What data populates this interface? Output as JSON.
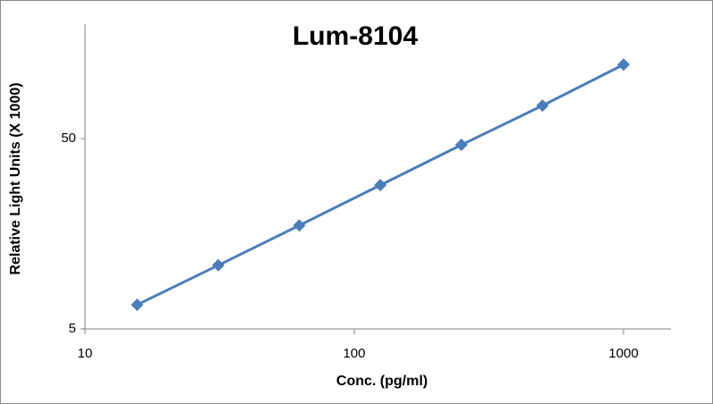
{
  "chart_data": {
    "type": "line",
    "title": "Lum-8104",
    "x_label": "Conc. (pg/ml)",
    "y_label": "Relative Light Units (X 1000)",
    "x": [
      15.625,
      31.25,
      62.5,
      125,
      250,
      500,
      1000
    ],
    "series": [
      {
        "name": "Lum-8104",
        "color": "#4a7ebb",
        "values": [
          6.7,
          10.8,
          17.5,
          28.5,
          46.4,
          74.6,
          122.6
        ]
      }
    ],
    "xlim": [
      10,
      1500
    ],
    "ylim": [
      5,
      200
    ],
    "xticks": [
      10,
      100,
      1000
    ],
    "yticks": [
      5,
      50
    ],
    "x_log": true,
    "y_log": true,
    "grid": false,
    "legend": false
  }
}
